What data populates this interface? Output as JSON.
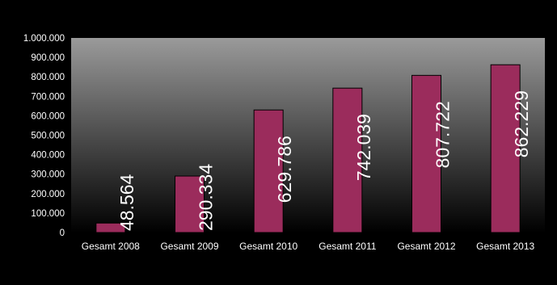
{
  "chart_data": {
    "type": "bar",
    "categories": [
      "Gesamt 2008",
      "Gesamt 2009",
      "Gesamt 2010",
      "Gesamt 2011",
      "Gesamt 2012",
      "Gesamt 2013"
    ],
    "values": [
      48564,
      290334,
      629786,
      742039,
      807722,
      862229
    ],
    "data_labels": [
      "48.564",
      "290.334",
      "629.786",
      "742.039",
      "807.722",
      "862.229"
    ],
    "y_ticks": [
      0,
      100000,
      200000,
      300000,
      400000,
      500000,
      600000,
      700000,
      800000,
      900000,
      1000000
    ],
    "y_tick_labels": [
      "0",
      "100.000",
      "200.000",
      "300.000",
      "400.000",
      "500.000",
      "600.000",
      "700.000",
      "800.000",
      "900.000",
      "1.000.000"
    ],
    "ylim": [
      0,
      1000000
    ],
    "title": "",
    "xlabel": "",
    "ylabel": "",
    "grid": false,
    "legend": "none",
    "colors": {
      "bar": "#9b2c5c",
      "bar_edge": "#000000",
      "plot_bg_top": "#9a9a9a",
      "plot_bg_bottom": "#000000",
      "text": "#ffffff"
    }
  }
}
